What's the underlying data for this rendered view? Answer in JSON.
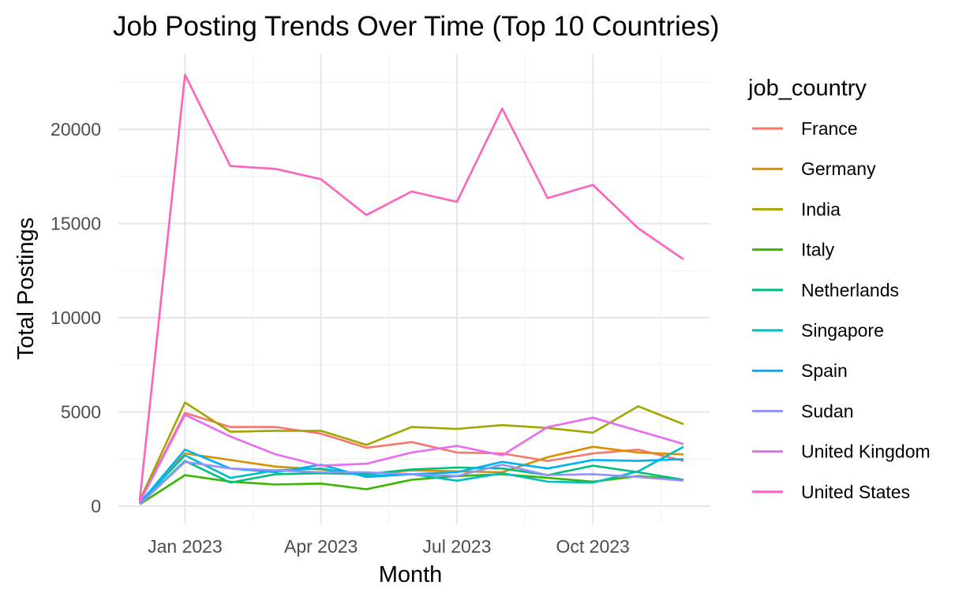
{
  "chart_data": {
    "type": "line",
    "title": "Job Posting Trends Over Time (Top 10 Countries)",
    "xlabel": "Month",
    "ylabel": "Total Postings",
    "legend_title": "job_country",
    "legend_position": "right",
    "grid": true,
    "x": [
      "2022-12",
      "2023-01",
      "2023-02",
      "2023-03",
      "2023-04",
      "2023-05",
      "2023-06",
      "2023-07",
      "2023-08",
      "2023-09",
      "2023-10",
      "2023-11",
      "2023-12"
    ],
    "x_ticks": [
      "Jan 2023",
      "Apr 2023",
      "Jul 2023",
      "Oct 2023"
    ],
    "y_ticks": [
      "0",
      "5000",
      "10000",
      "15000",
      "20000"
    ],
    "ylim": [
      0,
      23000
    ],
    "series": [
      {
        "name": "France",
        "color": "#F8766D",
        "values": [
          250,
          4950,
          4200,
          4200,
          3850,
          3100,
          3400,
          2850,
          2800,
          2400,
          2800,
          3000,
          2400
        ]
      },
      {
        "name": "Germany",
        "color": "#D89000",
        "values": [
          200,
          2800,
          2450,
          2100,
          1950,
          1700,
          1900,
          1850,
          1800,
          2600,
          3150,
          2850,
          2750
        ]
      },
      {
        "name": "India",
        "color": "#A3A500",
        "values": [
          300,
          5500,
          3950,
          4000,
          4000,
          3250,
          4200,
          4100,
          4300,
          4150,
          3900,
          5300,
          4350
        ]
      },
      {
        "name": "Italy",
        "color": "#39B600",
        "values": [
          100,
          1650,
          1300,
          1150,
          1200,
          900,
          1400,
          1600,
          1700,
          1500,
          1300,
          1600,
          1400
        ]
      },
      {
        "name": "Netherlands",
        "color": "#00BF7D",
        "values": [
          100,
          2400,
          1250,
          1700,
          1750,
          1700,
          1950,
          2050,
          2000,
          1650,
          2150,
          1800,
          1400
        ]
      },
      {
        "name": "Singapore",
        "color": "#00BFC4",
        "values": [
          150,
          2700,
          1500,
          1900,
          2000,
          1600,
          1700,
          1350,
          1750,
          1300,
          1250,
          1850,
          3150
        ]
      },
      {
        "name": "Spain",
        "color": "#00B0F6",
        "values": [
          150,
          3000,
          2000,
          1800,
          2200,
          1550,
          1700,
          1800,
          2350,
          2000,
          2450,
          2400,
          2500
        ]
      },
      {
        "name": "Sudan",
        "color": "#9590FF",
        "values": [
          100,
          2350,
          2000,
          1900,
          1800,
          1800,
          1700,
          1600,
          2200,
          1650,
          1700,
          1550,
          1350
        ]
      },
      {
        "name": "United Kingdom",
        "color": "#E76BF3",
        "values": [
          200,
          4850,
          3700,
          2750,
          2150,
          2250,
          2850,
          3200,
          2700,
          4200,
          4700,
          4000,
          3300
        ]
      },
      {
        "name": "United States",
        "color": "#FF62BC",
        "values": [
          300,
          22900,
          18050,
          17900,
          17350,
          15450,
          16700,
          16150,
          21100,
          16350,
          17050,
          14750,
          13100
        ]
      }
    ]
  }
}
